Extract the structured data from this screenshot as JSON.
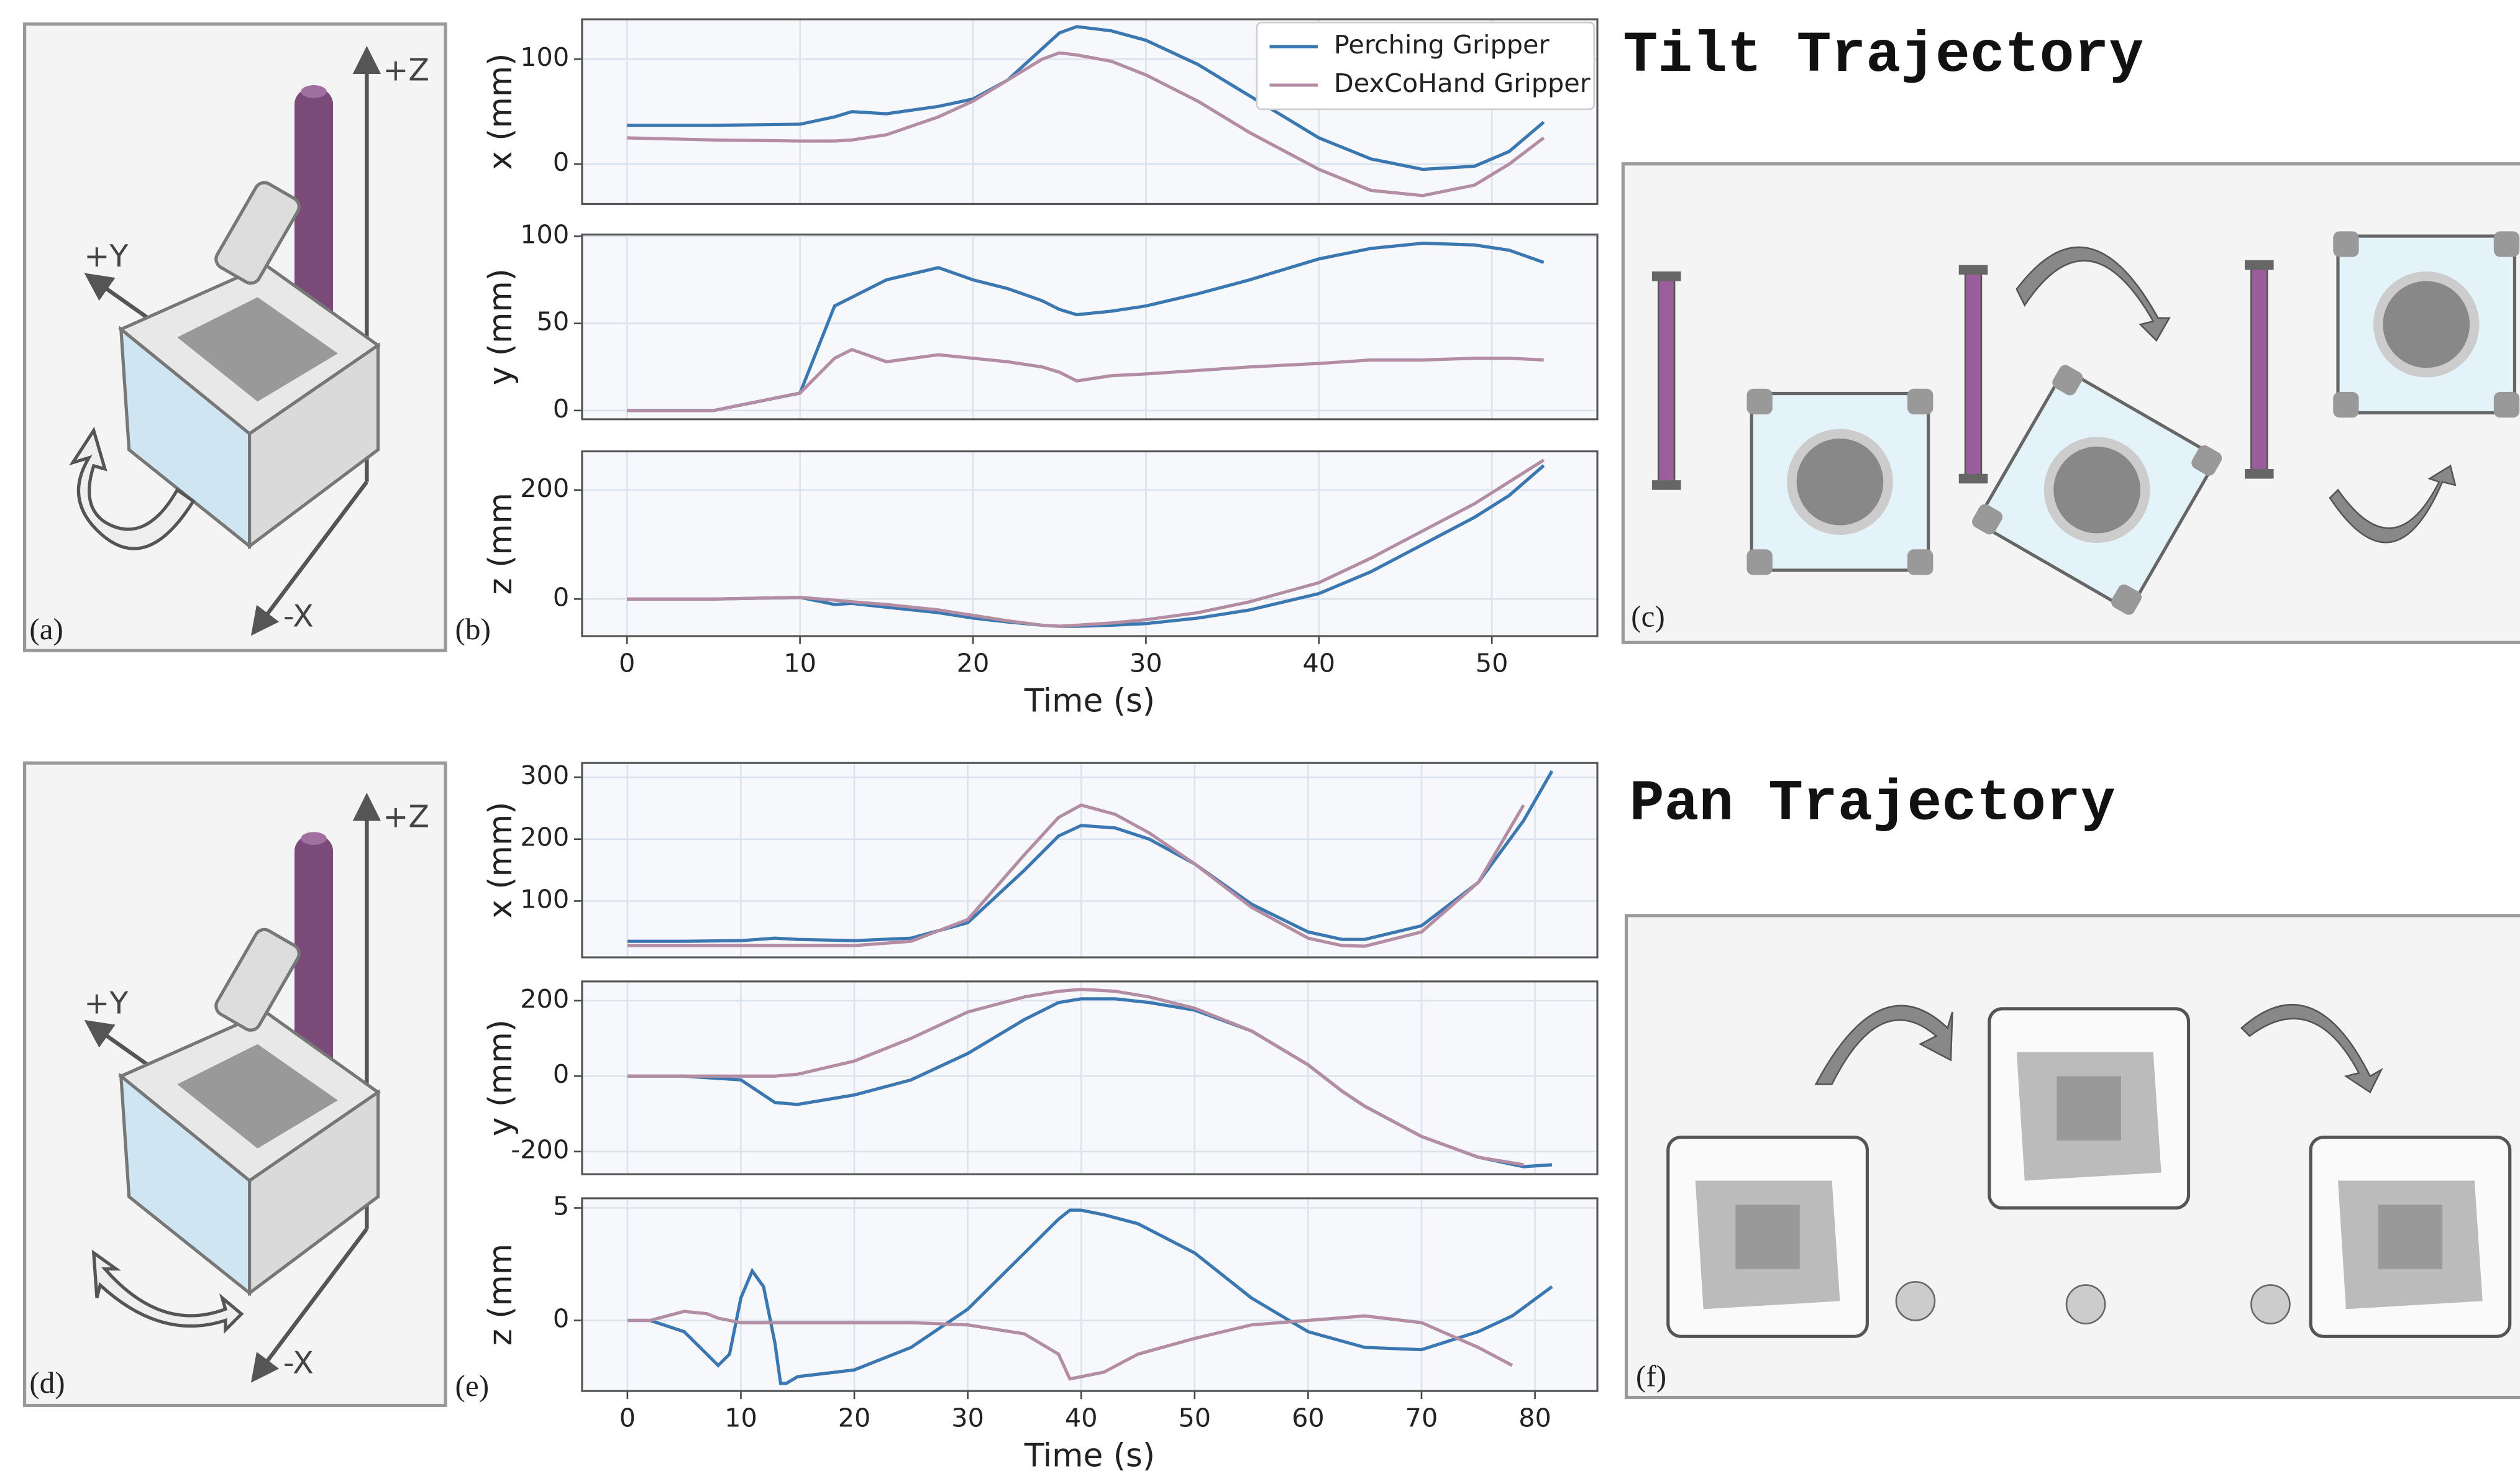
{
  "figure": {
    "tilt_title": "Tilt Trajectory",
    "pan_title": "Pan Trajectory",
    "panel_labels": [
      "(a)",
      "(b)",
      "(c)",
      "(d)",
      "(e)",
      "(f)"
    ],
    "axis_names": {
      "z": "+Z",
      "y": "+Y",
      "x": "-X"
    }
  },
  "chart_data": [
    {
      "type": "line",
      "ylabel": "x (mm)",
      "legend": "upper right",
      "grid": true,
      "x": [
        0,
        5,
        10,
        12,
        13,
        15,
        18,
        20,
        22,
        24,
        25,
        26,
        28,
        30,
        33,
        36,
        40,
        43,
        46,
        49,
        51,
        53
      ],
      "xlim": [
        -2.6,
        56.1
      ],
      "xticks": [
        0,
        10,
        20,
        30,
        40,
        50
      ],
      "ylim": [
        -38,
        138
      ],
      "yticks": [
        0,
        100
      ],
      "series": [
        {
          "name": "Perching Gripper",
          "color": "#3b77b0",
          "values": [
            37,
            37,
            38,
            45,
            50,
            48,
            55,
            62,
            80,
            110,
            125,
            131,
            127,
            118,
            95,
            65,
            25,
            5,
            -5,
            -2,
            12,
            40
          ]
        },
        {
          "name": "DexCoHand Gripper",
          "color": "#b38da3",
          "values": [
            25,
            23,
            22,
            22,
            23,
            28,
            45,
            60,
            80,
            100,
            106,
            104,
            98,
            85,
            60,
            30,
            -5,
            -25,
            -30,
            -20,
            0,
            25
          ]
        }
      ]
    },
    {
      "type": "line",
      "ylabel": "y (mm)",
      "grid": true,
      "x": [
        0,
        5,
        10,
        12,
        13,
        15,
        18,
        20,
        22,
        24,
        25,
        26,
        28,
        30,
        33,
        36,
        40,
        43,
        46,
        49,
        51,
        53
      ],
      "xlim": [
        -2.6,
        56.1
      ],
      "xticks": [
        0,
        10,
        20,
        30,
        40,
        50
      ],
      "ylim": [
        -5,
        101
      ],
      "yticks": [
        0,
        50,
        100
      ],
      "series": [
        {
          "color": "#3b77b0",
          "values": [
            0,
            0,
            10,
            60,
            65,
            75,
            82,
            75,
            70,
            63,
            58,
            55,
            57,
            60,
            67,
            75,
            87,
            93,
            96,
            95,
            92,
            85
          ]
        },
        {
          "color": "#b38da3",
          "values": [
            0,
            0,
            10,
            30,
            35,
            28,
            32,
            30,
            28,
            25,
            22,
            17,
            20,
            21,
            23,
            25,
            27,
            29,
            29,
            30,
            30,
            29
          ]
        }
      ]
    },
    {
      "type": "line",
      "ylabel": "z (mm",
      "xlabel": "Time (s)",
      "grid": true,
      "x": [
        0,
        5,
        10,
        12,
        13,
        15,
        18,
        20,
        22,
        24,
        25,
        26,
        28,
        30,
        33,
        36,
        40,
        43,
        46,
        49,
        51,
        53
      ],
      "xlim": [
        -2.6,
        56.1
      ],
      "xticks": [
        0,
        10,
        20,
        30,
        40,
        50
      ],
      "ylim": [
        -68,
        271
      ],
      "yticks": [
        0,
        200
      ],
      "series": [
        {
          "color": "#3b77b0",
          "values": [
            0,
            0,
            3,
            -10,
            -8,
            -15,
            -25,
            -35,
            -42,
            -48,
            -50,
            -50,
            -48,
            -45,
            -35,
            -20,
            10,
            50,
            100,
            150,
            190,
            245
          ]
        },
        {
          "color": "#b38da3",
          "values": [
            0,
            0,
            3,
            -2,
            -5,
            -10,
            -20,
            -30,
            -40,
            -48,
            -50,
            -48,
            -44,
            -38,
            -25,
            -5,
            30,
            75,
            125,
            175,
            215,
            255
          ]
        }
      ]
    },
    {
      "type": "line",
      "ylabel": "x (mm)",
      "grid": true,
      "x": [
        0,
        5,
        10,
        13,
        15,
        20,
        25,
        30,
        35,
        38,
        40,
        43,
        46,
        50,
        55,
        60,
        63,
        65,
        70,
        75,
        79,
        81.5
      ],
      "xlim": [
        -4,
        85.5
      ],
      "xticks": [
        0,
        10,
        20,
        30,
        40,
        50,
        60,
        70,
        80
      ],
      "ylim": [
        9,
        323
      ],
      "yticks": [
        100,
        200,
        300
      ],
      "series": [
        {
          "color": "#3b77b0",
          "values": [
            35,
            35,
            36,
            40,
            38,
            36,
            40,
            65,
            150,
            205,
            222,
            218,
            200,
            160,
            95,
            50,
            38,
            38,
            60,
            130,
            230,
            310
          ]
        },
        {
          "color": "#b38da3",
          "values": [
            28,
            28,
            28,
            28,
            28,
            28,
            35,
            70,
            175,
            235,
            255,
            240,
            210,
            160,
            90,
            40,
            28,
            27,
            50,
            130,
            255,
            null
          ]
        }
      ]
    },
    {
      "type": "line",
      "ylabel": "y (mm)",
      "grid": true,
      "x": [
        0,
        5,
        10,
        13,
        15,
        20,
        25,
        30,
        35,
        38,
        40,
        43,
        46,
        50,
        55,
        60,
        63,
        65,
        70,
        75,
        79,
        81.5
      ],
      "xlim": [
        -4,
        85.5
      ],
      "xticks": [
        0,
        10,
        20,
        30,
        40,
        50,
        60,
        70,
        80
      ],
      "ylim": [
        -260,
        251
      ],
      "yticks": [
        200,
        0,
        -200
      ],
      "series": [
        {
          "color": "#3b77b0",
          "values": [
            0,
            0,
            -10,
            -70,
            -75,
            -50,
            -10,
            60,
            150,
            195,
            205,
            205,
            195,
            175,
            120,
            30,
            -40,
            -80,
            -160,
            -215,
            -240,
            -235
          ]
        },
        {
          "color": "#b38da3",
          "values": [
            0,
            0,
            0,
            0,
            5,
            40,
            100,
            170,
            210,
            225,
            230,
            225,
            210,
            180,
            120,
            30,
            -40,
            -80,
            -160,
            -215,
            -235,
            null
          ]
        }
      ]
    },
    {
      "type": "line",
      "ylabel": "z (mm",
      "xlabel": "Time (s)",
      "grid": true,
      "x": [
        0,
        2,
        5,
        7,
        8,
        9,
        10,
        11,
        12,
        13,
        13.5,
        14,
        15,
        20,
        25,
        30,
        35,
        38,
        39,
        40,
        42,
        45,
        50,
        55,
        60,
        65,
        70,
        75,
        78,
        81.5
      ],
      "xlim": [
        -4,
        85.5
      ],
      "xticks": [
        0,
        10,
        20,
        30,
        40,
        50,
        60,
        70,
        80
      ],
      "ylim": [
        -3.14,
        5.43
      ],
      "yticks": [
        0,
        5
      ],
      "series": [
        {
          "color": "#3b77b0",
          "values": [
            0,
            0,
            -0.5,
            -1.5,
            -2.0,
            -1.5,
            1.0,
            2.2,
            1.5,
            -1.0,
            -2.8,
            -2.8,
            -2.5,
            -2.2,
            -1.2,
            0.5,
            3.0,
            4.5,
            4.9,
            4.9,
            4.7,
            4.3,
            3.0,
            1.0,
            -0.5,
            -1.2,
            -1.3,
            -0.5,
            0.2,
            1.5
          ]
        },
        {
          "color": "#b38da3",
          "values": [
            0,
            0,
            0.4,
            0.3,
            0.1,
            0.0,
            -0.1,
            -0.1,
            -0.1,
            -0.1,
            -0.1,
            -0.1,
            -0.1,
            -0.1,
            -0.1,
            -0.2,
            -0.6,
            -1.5,
            -2.6,
            -2.5,
            -2.3,
            -1.5,
            -0.8,
            -0.2,
            0.0,
            0.2,
            -0.1,
            -1.2,
            -2.0,
            null
          ]
        }
      ]
    }
  ]
}
